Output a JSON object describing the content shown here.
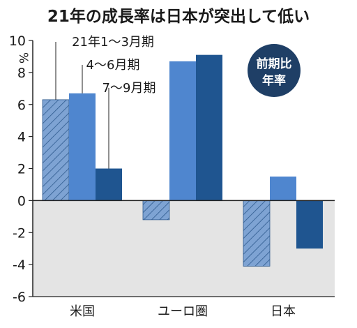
{
  "title": "21年の成長率は日本が突出して低い",
  "badge": {
    "line1": "前期比",
    "line2": "年率",
    "color": "#1f3f66"
  },
  "chart_data": {
    "type": "bar",
    "title": "21年の成長率は日本が突出して低い",
    "ylabel": "%",
    "ylim": [
      -6,
      10
    ],
    "yticks": [
      10,
      8,
      6,
      4,
      2,
      0,
      -2,
      -4,
      -6
    ],
    "categories": [
      "米国",
      "ユーロ圏",
      "日本"
    ],
    "series": [
      {
        "name": "21年1〜3月期",
        "values": [
          6.3,
          -1.2,
          -4.1
        ],
        "color": "#6d95cc",
        "pattern": "hatched"
      },
      {
        "name": "4〜6月期",
        "values": [
          6.7,
          8.7,
          1.5
        ],
        "color": "#4f86cf"
      },
      {
        "name": "7〜9月期",
        "values": [
          2.0,
          9.1,
          -3.0
        ],
        "color": "#1f5590"
      }
    ],
    "negative_region_color": "#e4e4e4",
    "grid": false
  }
}
